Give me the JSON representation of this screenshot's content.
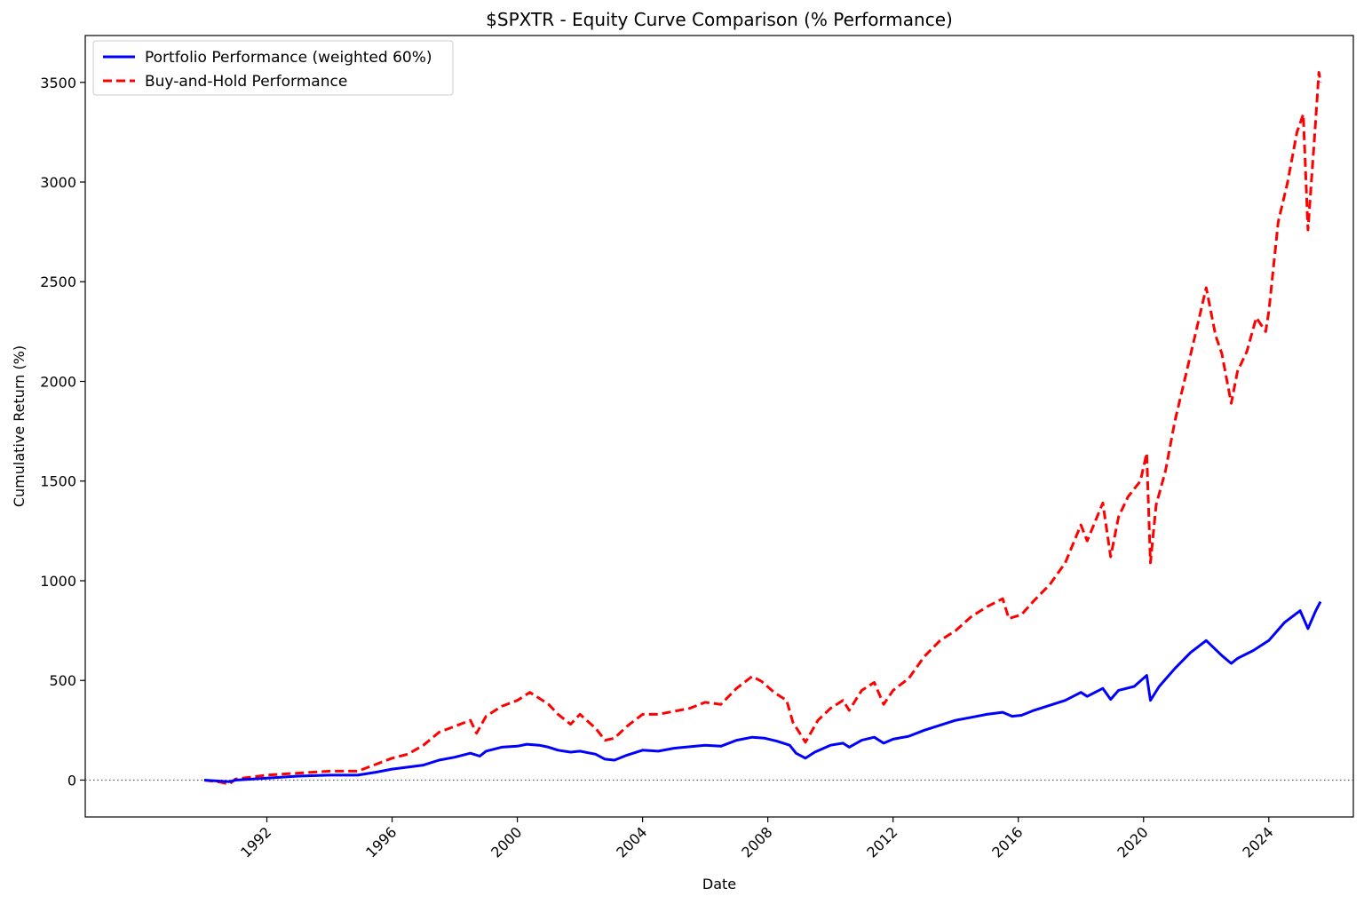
{
  "chart_data": {
    "type": "line",
    "title": "$SPXTR - Equity Curve Comparison (% Performance)",
    "xlabel": "Date",
    "ylabel": "Cumulative Return (%)",
    "x_tick_labels": [
      "1992",
      "1996",
      "2000",
      "2004",
      "2008",
      "2012",
      "2016",
      "2020",
      "2024"
    ],
    "x_ticks": [
      1992,
      1996,
      2000,
      2004,
      2008,
      2012,
      2016,
      2020,
      2024
    ],
    "xlim": [
      1986.2,
      2026.7
    ],
    "y_tick_labels": [
      "0",
      "500",
      "1000",
      "1500",
      "2000",
      "2500",
      "3000",
      "3500"
    ],
    "y_ticks": [
      0,
      500,
      1000,
      1500,
      2000,
      2500,
      3000,
      3500
    ],
    "ylim": [
      -185,
      3735
    ],
    "grid": false,
    "legend_position": "upper-left",
    "reference_line": {
      "y": 0,
      "style": "dotted",
      "color": "#555555"
    },
    "series": [
      {
        "name": "Portfolio Performance (weighted 60%)",
        "color": "#0000ff",
        "style": "solid",
        "points": [
          [
            1990.0,
            0
          ],
          [
            1990.5,
            -5
          ],
          [
            1990.8,
            -8
          ],
          [
            1991.0,
            0
          ],
          [
            1992.0,
            10
          ],
          [
            1993.0,
            20
          ],
          [
            1994.0,
            25
          ],
          [
            1994.9,
            25
          ],
          [
            1995.5,
            40
          ],
          [
            1996.0,
            55
          ],
          [
            1996.5,
            65
          ],
          [
            1997.0,
            75
          ],
          [
            1997.5,
            100
          ],
          [
            1998.0,
            115
          ],
          [
            1998.5,
            135
          ],
          [
            1998.8,
            120
          ],
          [
            1999.0,
            145
          ],
          [
            1999.5,
            165
          ],
          [
            2000.0,
            170
          ],
          [
            2000.3,
            180
          ],
          [
            2000.7,
            175
          ],
          [
            2001.0,
            165
          ],
          [
            2001.3,
            150
          ],
          [
            2001.7,
            140
          ],
          [
            2002.0,
            145
          ],
          [
            2002.5,
            130
          ],
          [
            2002.8,
            105
          ],
          [
            2003.1,
            100
          ],
          [
            2003.5,
            125
          ],
          [
            2004.0,
            150
          ],
          [
            2004.5,
            145
          ],
          [
            2005.0,
            160
          ],
          [
            2006.0,
            175
          ],
          [
            2006.5,
            170
          ],
          [
            2007.0,
            200
          ],
          [
            2007.5,
            215
          ],
          [
            2007.9,
            210
          ],
          [
            2008.3,
            195
          ],
          [
            2008.7,
            175
          ],
          [
            2008.9,
            135
          ],
          [
            2009.2,
            110
          ],
          [
            2009.5,
            140
          ],
          [
            2010.0,
            175
          ],
          [
            2010.4,
            185
          ],
          [
            2010.6,
            165
          ],
          [
            2011.0,
            200
          ],
          [
            2011.4,
            215
          ],
          [
            2011.7,
            185
          ],
          [
            2012.0,
            205
          ],
          [
            2012.5,
            220
          ],
          [
            2013.0,
            250
          ],
          [
            2013.5,
            275
          ],
          [
            2014.0,
            300
          ],
          [
            2014.5,
            315
          ],
          [
            2015.0,
            330
          ],
          [
            2015.5,
            340
          ],
          [
            2015.8,
            320
          ],
          [
            2016.1,
            325
          ],
          [
            2016.5,
            350
          ],
          [
            2017.0,
            375
          ],
          [
            2017.5,
            400
          ],
          [
            2018.0,
            440
          ],
          [
            2018.2,
            420
          ],
          [
            2018.7,
            460
          ],
          [
            2018.95,
            405
          ],
          [
            2019.2,
            450
          ],
          [
            2019.7,
            470
          ],
          [
            2020.1,
            525
          ],
          [
            2020.22,
            400
          ],
          [
            2020.5,
            470
          ],
          [
            2021.0,
            560
          ],
          [
            2021.5,
            640
          ],
          [
            2022.0,
            700
          ],
          [
            2022.5,
            625
          ],
          [
            2022.8,
            585
          ],
          [
            2023.0,
            610
          ],
          [
            2023.5,
            650
          ],
          [
            2024.0,
            700
          ],
          [
            2024.5,
            790
          ],
          [
            2025.0,
            850
          ],
          [
            2025.25,
            760
          ],
          [
            2025.5,
            850
          ],
          [
            2025.65,
            895
          ]
        ]
      },
      {
        "name": "Buy-and-Hold Performance",
        "color": "#ff0000",
        "style": "dashed",
        "points": [
          [
            1990.0,
            0
          ],
          [
            1990.5,
            -10
          ],
          [
            1990.8,
            -20
          ],
          [
            1991.0,
            5
          ],
          [
            1992.0,
            25
          ],
          [
            1993.0,
            35
          ],
          [
            1994.0,
            45
          ],
          [
            1994.9,
            45
          ],
          [
            1995.5,
            80
          ],
          [
            1996.0,
            110
          ],
          [
            1996.5,
            130
          ],
          [
            1997.0,
            175
          ],
          [
            1997.5,
            240
          ],
          [
            1998.0,
            270
          ],
          [
            1998.5,
            300
          ],
          [
            1998.7,
            235
          ],
          [
            1999.0,
            320
          ],
          [
            1999.5,
            370
          ],
          [
            2000.0,
            400
          ],
          [
            2000.4,
            440
          ],
          [
            2000.7,
            410
          ],
          [
            2001.0,
            380
          ],
          [
            2001.3,
            330
          ],
          [
            2001.7,
            280
          ],
          [
            2002.0,
            330
          ],
          [
            2002.5,
            260
          ],
          [
            2002.8,
            200
          ],
          [
            2003.1,
            210
          ],
          [
            2003.5,
            270
          ],
          [
            2004.0,
            330
          ],
          [
            2004.5,
            330
          ],
          [
            2005.0,
            345
          ],
          [
            2005.5,
            360
          ],
          [
            2006.0,
            390
          ],
          [
            2006.5,
            380
          ],
          [
            2007.0,
            460
          ],
          [
            2007.5,
            520
          ],
          [
            2007.8,
            495
          ],
          [
            2008.2,
            440
          ],
          [
            2008.6,
            400
          ],
          [
            2008.8,
            290
          ],
          [
            2009.2,
            190
          ],
          [
            2009.6,
            300
          ],
          [
            2010.0,
            360
          ],
          [
            2010.4,
            400
          ],
          [
            2010.6,
            350
          ],
          [
            2011.0,
            450
          ],
          [
            2011.4,
            490
          ],
          [
            2011.7,
            380
          ],
          [
            2012.0,
            450
          ],
          [
            2012.5,
            510
          ],
          [
            2013.0,
            620
          ],
          [
            2013.5,
            700
          ],
          [
            2014.0,
            750
          ],
          [
            2014.5,
            820
          ],
          [
            2015.0,
            870
          ],
          [
            2015.5,
            910
          ],
          [
            2015.7,
            810
          ],
          [
            2016.1,
            830
          ],
          [
            2016.5,
            900
          ],
          [
            2017.0,
            980
          ],
          [
            2017.5,
            1090
          ],
          [
            2018.0,
            1280
          ],
          [
            2018.2,
            1200
          ],
          [
            2018.7,
            1390
          ],
          [
            2018.95,
            1120
          ],
          [
            2019.2,
            1320
          ],
          [
            2019.5,
            1420
          ],
          [
            2019.9,
            1500
          ],
          [
            2020.1,
            1640
          ],
          [
            2020.22,
            1090
          ],
          [
            2020.4,
            1380
          ],
          [
            2020.7,
            1550
          ],
          [
            2021.0,
            1800
          ],
          [
            2021.3,
            2000
          ],
          [
            2021.6,
            2200
          ],
          [
            2022.0,
            2470
          ],
          [
            2022.3,
            2230
          ],
          [
            2022.5,
            2140
          ],
          [
            2022.8,
            1890
          ],
          [
            2023.0,
            2050
          ],
          [
            2023.3,
            2150
          ],
          [
            2023.6,
            2320
          ],
          [
            2023.9,
            2250
          ],
          [
            2024.0,
            2350
          ],
          [
            2024.3,
            2800
          ],
          [
            2024.6,
            3000
          ],
          [
            2024.9,
            3250
          ],
          [
            2025.1,
            3340
          ],
          [
            2025.25,
            2760
          ],
          [
            2025.45,
            3200
          ],
          [
            2025.6,
            3550
          ],
          [
            2025.65,
            3500
          ]
        ]
      }
    ]
  }
}
